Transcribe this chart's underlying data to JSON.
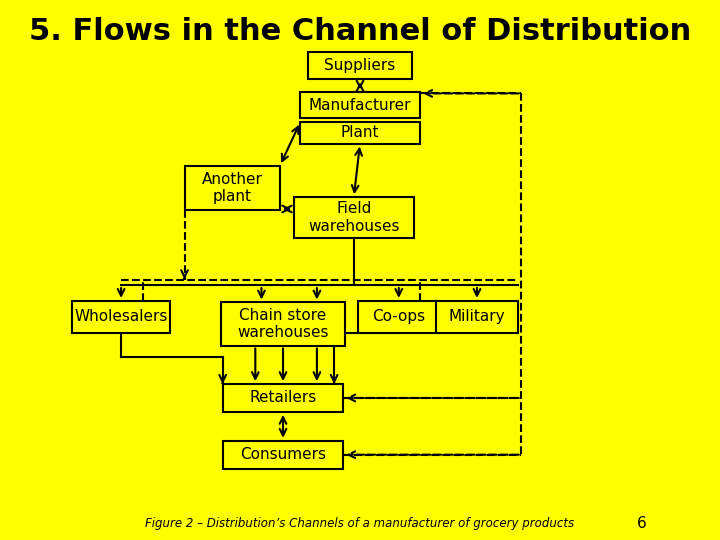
{
  "title": "5. Flows in the Channel of Distribution",
  "bg_color": "#FFFF00",
  "caption": "Figure 2 – Distribution’s Channels of a manufacturer of grocery products",
  "page_num": "6",
  "title_fontsize": 22,
  "label_fontsize": 11
}
